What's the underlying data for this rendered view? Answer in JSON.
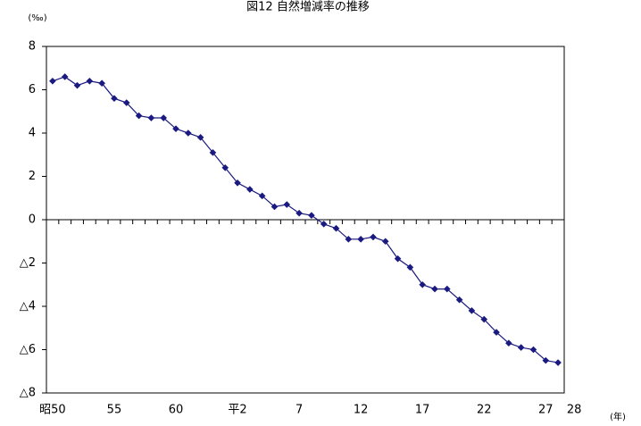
{
  "chart_data": {
    "type": "line",
    "title": "図12 自然増減率の推移",
    "y_unit": "(‰)",
    "x_unit": "(年)",
    "categories": [
      "昭50",
      null,
      null,
      null,
      null,
      "55",
      null,
      null,
      null,
      null,
      "60",
      null,
      null,
      null,
      null,
      "平2",
      null,
      null,
      null,
      null,
      "7",
      null,
      null,
      null,
      null,
      "12",
      null,
      null,
      null,
      null,
      "17",
      null,
      null,
      null,
      null,
      "22",
      null,
      null,
      null,
      null,
      "27",
      "28"
    ],
    "series": [
      {
        "name": "自然増減率",
        "color": "#1a1a80",
        "values": [
          6.4,
          6.6,
          6.2,
          6.4,
          6.3,
          5.6,
          5.4,
          4.8,
          4.7,
          4.7,
          4.2,
          4.0,
          3.8,
          3.1,
          2.4,
          1.7,
          1.4,
          1.1,
          0.6,
          0.7,
          0.3,
          0.2,
          -0.2,
          -0.4,
          -0.9,
          -0.9,
          -0.8,
          -1.0,
          -1.8,
          -2.2,
          -3.0,
          -3.2,
          -3.2,
          -3.7,
          -4.2,
          -4.6,
          -5.2,
          -5.7,
          -5.9,
          -6.0,
          -6.5,
          -6.6
        ]
      }
    ],
    "ylim": [
      -8,
      8
    ],
    "yticks": [
      {
        "value": -8,
        "label": "△8"
      },
      {
        "value": -6,
        "label": "△6"
      },
      {
        "value": -4,
        "label": "△4"
      },
      {
        "value": -2,
        "label": "△2"
      },
      0,
      2,
      4,
      6,
      8
    ]
  }
}
